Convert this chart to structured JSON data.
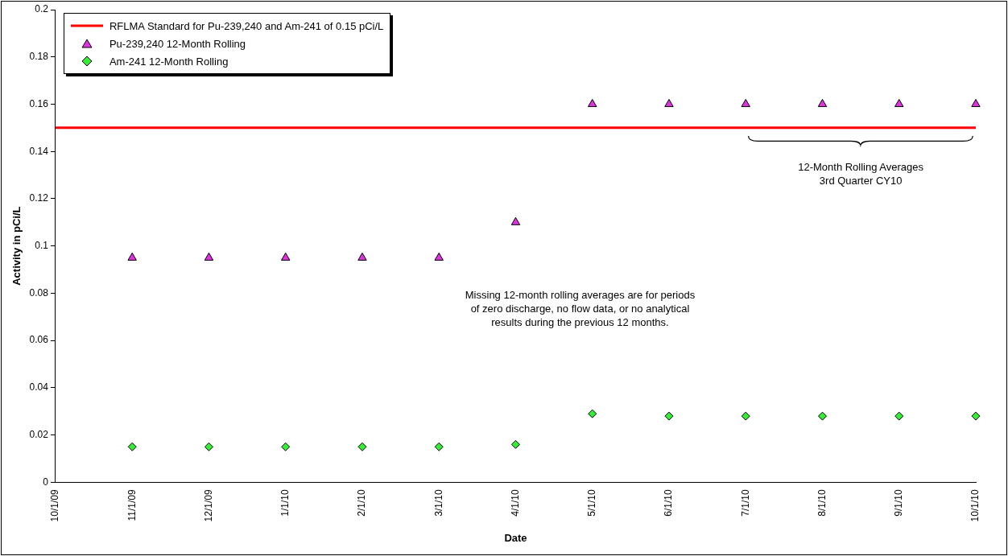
{
  "chart_data": {
    "type": "scatter",
    "xlabel": "Date",
    "ylabel": "Activity in pCi/L",
    "categories": [
      "10/1/09",
      "11/1/09",
      "12/1/09",
      "1/1/10",
      "2/1/10",
      "3/1/10",
      "4/1/10",
      "5/1/10",
      "6/1/10",
      "7/1/10",
      "8/1/10",
      "9/1/10",
      "10/1/10"
    ],
    "series": [
      {
        "name": "Pu-239,240 12-Month Rolling",
        "color": "#e033e0",
        "marker": "triangle",
        "values": [
          null,
          0.095,
          0.095,
          0.095,
          0.095,
          0.095,
          0.11,
          0.16,
          0.16,
          0.16,
          0.16,
          0.16,
          0.16
        ]
      },
      {
        "name": "Am-241 12-Month Rolling",
        "color": "#33ee33",
        "marker": "diamond",
        "values": [
          null,
          0.015,
          0.015,
          0.015,
          0.015,
          0.015,
          0.016,
          0.029,
          0.028,
          0.028,
          0.028,
          0.028,
          0.028
        ]
      }
    ],
    "ylim": [
      0,
      0.2
    ],
    "yticks": [
      0,
      0.02,
      0.04,
      0.06,
      0.08,
      0.1,
      0.12,
      0.14,
      0.16,
      0.18,
      0.2
    ],
    "ref_lines": [
      {
        "axis": "y",
        "value": 0.15,
        "label": "RFLMA Standard for Pu-239,240 and Am-241 of 0.15 pCi/L",
        "color": "#ff0000"
      }
    ],
    "annotations": [
      "12-Month Rolling Averages\n3rd Quarter CY10",
      "Missing 12-month rolling averages are for periods\nof zero discharge, no flow data, or no analytical\nresults during the previous 12 months."
    ],
    "grid": false,
    "legend": "top left"
  }
}
